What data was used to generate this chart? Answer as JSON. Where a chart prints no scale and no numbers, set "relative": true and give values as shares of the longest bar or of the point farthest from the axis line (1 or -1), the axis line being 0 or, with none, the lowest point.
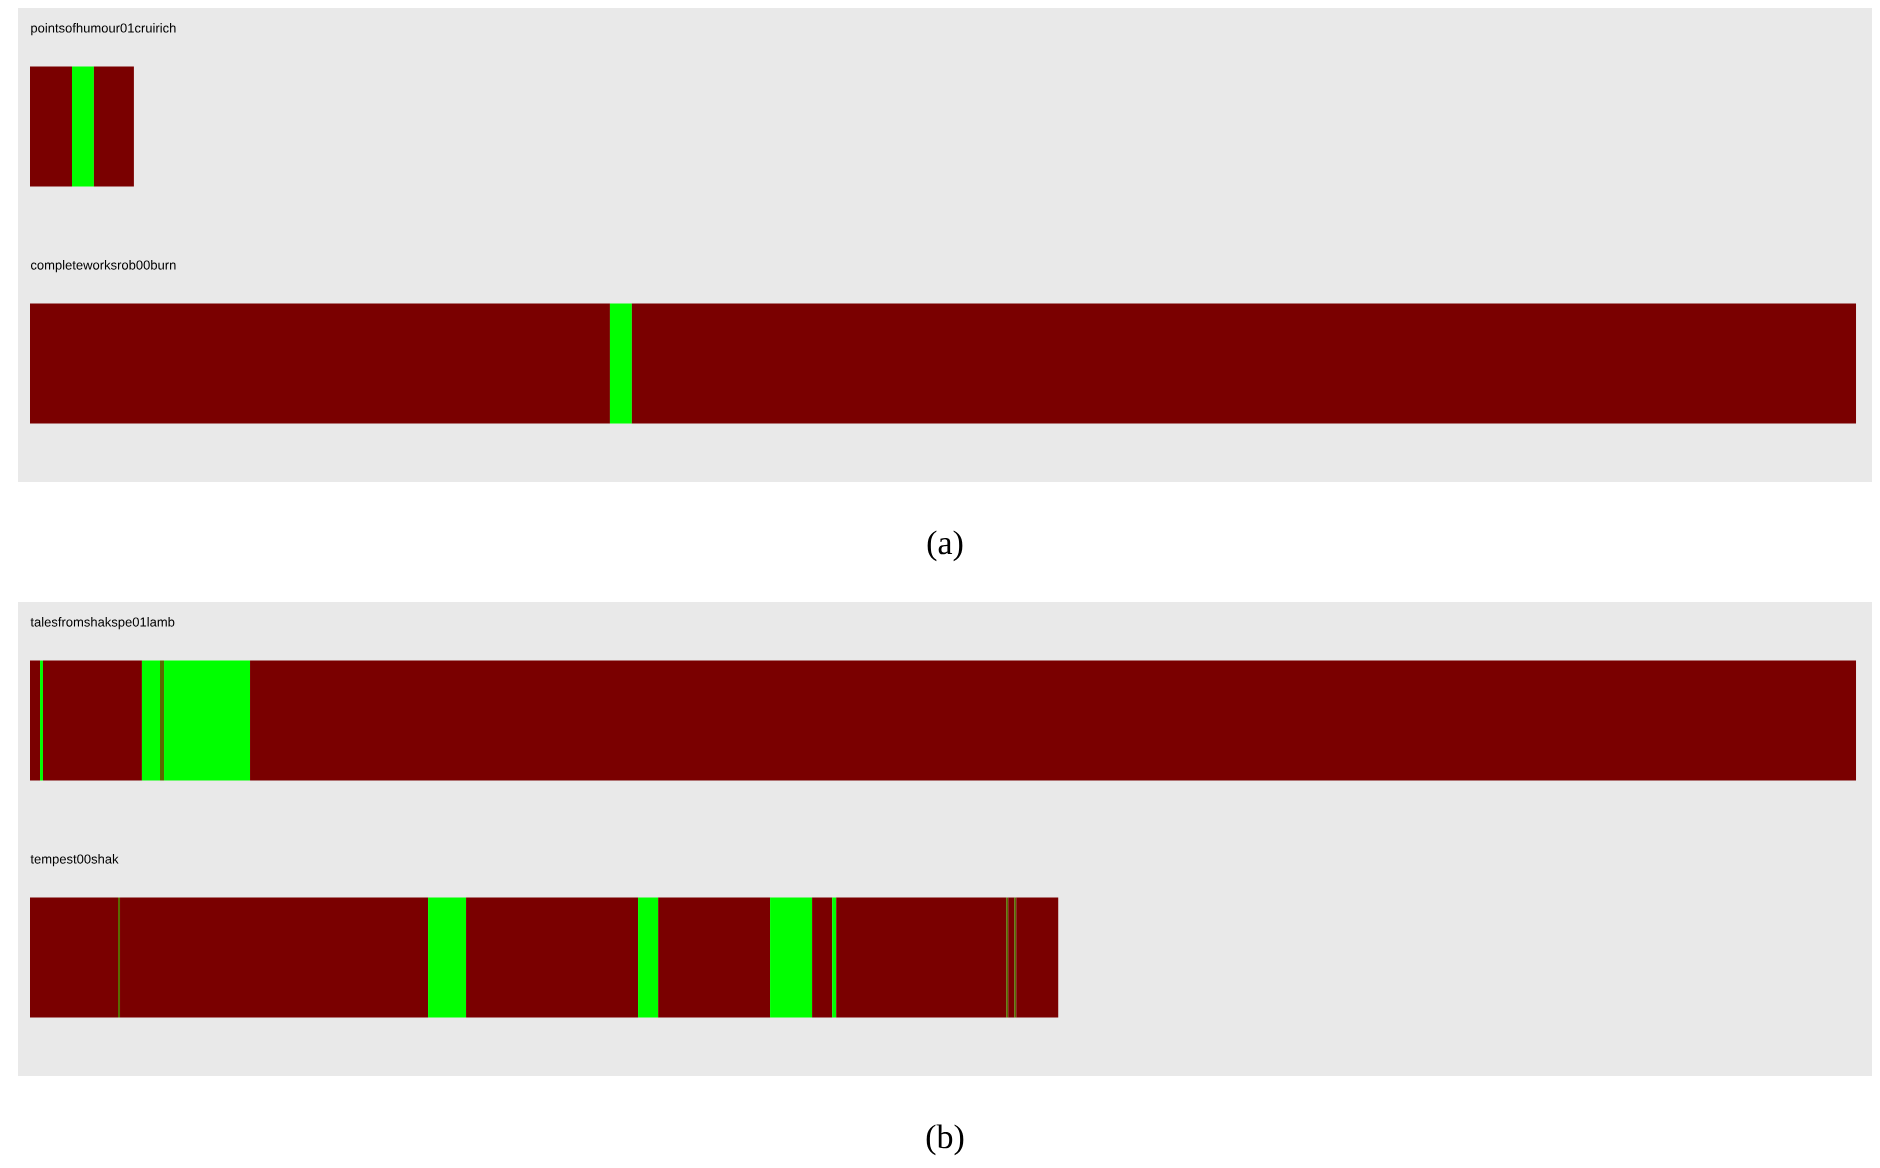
{
  "chart_data": [
    {
      "type": "bar",
      "orientation": "horizontal",
      "stacked": true,
      "relative": true,
      "title": "(a)",
      "categories": [
        "pointsofhumour01cruirich",
        "completeworksrob00burn"
      ],
      "series": [
        {
          "colors": [
            "#7a0000",
            "#7a0000"
          ],
          "values": [
            0.023,
            0.3176
          ]
        },
        {
          "colors": [
            "#00ff00",
            "#00ff00"
          ],
          "values": [
            0.012,
            0.012
          ]
        },
        {
          "colors": [
            "#7a0000",
            "#7a0000"
          ],
          "values": [
            0.0219,
            0.6704
          ]
        }
      ]
    },
    {
      "type": "bar",
      "orientation": "horizontal",
      "stacked": true,
      "relative": true,
      "title": "(b)",
      "categories": [
        "talesfromshakspe01lamb",
        "tempest00shak"
      ],
      "series": [
        {
          "colors": [
            "#7a0000",
            "#7a0000"
          ],
          "values": [
            0.0055,
            0.0482
          ]
        },
        {
          "colors": [
            "#00ff00",
            "#5a6a00"
          ],
          "values": [
            0.0016,
            0.0011
          ]
        },
        {
          "colors": [
            "#7a0000",
            "#7a0000"
          ],
          "values": [
            0.0542,
            0.1687
          ]
        },
        {
          "colors": [
            "#00ff00",
            "#00ff00"
          ],
          "values": [
            0.0099,
            0.0208
          ]
        },
        {
          "colors": [
            "#5a6a00",
            "#7a0000"
          ],
          "values": [
            0.0022,
            0.0942
          ]
        },
        {
          "colors": [
            "#00ff00",
            "#00ff00"
          ],
          "values": [
            0.0471,
            0.011
          ]
        },
        {
          "colors": [
            "#7a0000",
            "#7a0000"
          ],
          "values": [
            0.8795,
            0.0613
          ]
        },
        {
          "colors": [
            null,
            "#00ff00"
          ],
          "values": [
            null,
            0.023
          ]
        },
        {
          "colors": [
            null,
            "#7a0000"
          ],
          "values": [
            null,
            0.011
          ]
        },
        {
          "colors": [
            null,
            "#00ff00"
          ],
          "values": [
            null,
            0.0022
          ]
        },
        {
          "colors": [
            null,
            "#7a0000"
          ],
          "values": [
            null,
            0.0931
          ]
        },
        {
          "colors": [
            null,
            "#5a6a00"
          ],
          "values": [
            null,
            0.0011
          ]
        },
        {
          "colors": [
            null,
            "#7a0000"
          ],
          "values": [
            null,
            0.0033
          ]
        },
        {
          "colors": [
            null,
            "#5a6a00"
          ],
          "values": [
            null,
            0.0011
          ]
        },
        {
          "colors": [
            null,
            "#7a0000"
          ],
          "values": [
            null,
            0.023
          ]
        }
      ]
    }
  ]
}
